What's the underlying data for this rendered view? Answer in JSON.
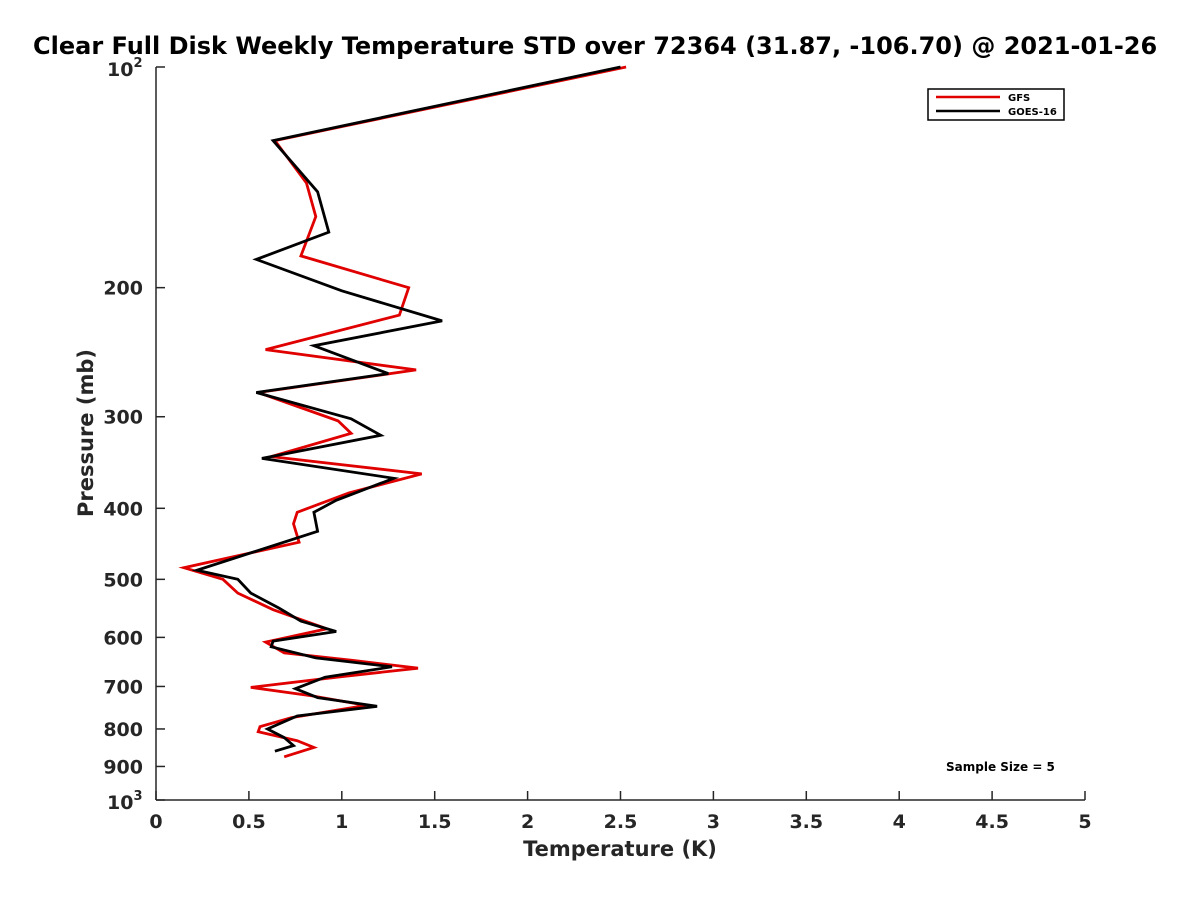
{
  "chart_data": {
    "type": "line",
    "title": "Clear Full Disk Weekly Temperature STD over 72364 (31.87, -106.70) @ 2021-01-26",
    "xlabel": "Temperature (K)",
    "ylabel": "Pressure (mb)",
    "xlim": [
      0,
      5
    ],
    "ylim": [
      100,
      1000
    ],
    "y_scale": "log",
    "y_reversed": true,
    "grid": false,
    "legend_position": "top-right",
    "x_ticks": [
      "0",
      "0.5",
      "1",
      "1.5",
      "2",
      "2.5",
      "3",
      "3.5",
      "4",
      "4.5",
      "5"
    ],
    "y_ticks": [
      {
        "value": 100,
        "base": "10",
        "exp": "2"
      },
      {
        "value": 200,
        "label": "200"
      },
      {
        "value": 300,
        "label": "300"
      },
      {
        "value": 400,
        "label": "400"
      },
      {
        "value": 500,
        "label": "500"
      },
      {
        "value": 600,
        "label": "600"
      },
      {
        "value": 700,
        "label": "700"
      },
      {
        "value": 800,
        "label": "800"
      },
      {
        "value": 900,
        "label": "900"
      },
      {
        "value": 1000,
        "base": "10",
        "exp": "3"
      }
    ],
    "annotation": "Sample Size = 5",
    "series": [
      {
        "name": "GFS",
        "color": "#e00000",
        "points": [
          [
            2.53,
            100
          ],
          [
            0.64,
            126
          ],
          [
            0.81,
            144
          ],
          [
            0.86,
            160
          ],
          [
            0.78,
            181
          ],
          [
            1.36,
            200
          ],
          [
            1.31,
            218
          ],
          [
            0.59,
            243
          ],
          [
            1.4,
            259
          ],
          [
            0.55,
            278
          ],
          [
            0.98,
            304
          ],
          [
            1.05,
            316
          ],
          [
            0.62,
            340
          ],
          [
            1.43,
            359
          ],
          [
            1.04,
            381
          ],
          [
            0.76,
            405
          ],
          [
            0.74,
            420
          ],
          [
            0.77,
            445
          ],
          [
            0.15,
            482
          ],
          [
            0.36,
            500
          ],
          [
            0.44,
            522
          ],
          [
            0.63,
            550
          ],
          [
            0.92,
            584
          ],
          [
            0.59,
            609
          ],
          [
            0.69,
            630
          ],
          [
            1.06,
            645
          ],
          [
            1.41,
            661
          ],
          [
            0.99,
            679
          ],
          [
            0.51,
            702
          ],
          [
            0.84,
            721
          ],
          [
            1.13,
            743
          ],
          [
            0.73,
            772
          ],
          [
            0.56,
            794
          ],
          [
            0.55,
            807
          ],
          [
            0.76,
            830
          ],
          [
            0.85,
            848
          ],
          [
            0.69,
            873
          ]
        ]
      },
      {
        "name": "GOES-16",
        "color": "#000000",
        "points": [
          [
            2.5,
            100
          ],
          [
            0.63,
            126
          ],
          [
            0.87,
            148
          ],
          [
            0.93,
            168
          ],
          [
            0.54,
            183
          ],
          [
            1.0,
            202
          ],
          [
            1.54,
            222
          ],
          [
            0.85,
            240
          ],
          [
            1.25,
            262
          ],
          [
            0.54,
            278
          ],
          [
            1.05,
            302
          ],
          [
            1.21,
            318
          ],
          [
            0.57,
            342
          ],
          [
            1.28,
            364
          ],
          [
            0.97,
            390
          ],
          [
            0.85,
            405
          ],
          [
            0.87,
            430
          ],
          [
            0.22,
            486
          ],
          [
            0.44,
            500
          ],
          [
            0.51,
            522
          ],
          [
            0.66,
            547
          ],
          [
            0.78,
            570
          ],
          [
            0.97,
            589
          ],
          [
            0.63,
            607
          ],
          [
            0.62,
            618
          ],
          [
            0.86,
            640
          ],
          [
            1.27,
            658
          ],
          [
            0.91,
            680
          ],
          [
            0.75,
            705
          ],
          [
            0.87,
            725
          ],
          [
            1.19,
            745
          ],
          [
            0.76,
            768
          ],
          [
            0.6,
            800
          ],
          [
            0.69,
            822
          ],
          [
            0.74,
            843
          ],
          [
            0.64,
            858
          ]
        ]
      }
    ]
  }
}
